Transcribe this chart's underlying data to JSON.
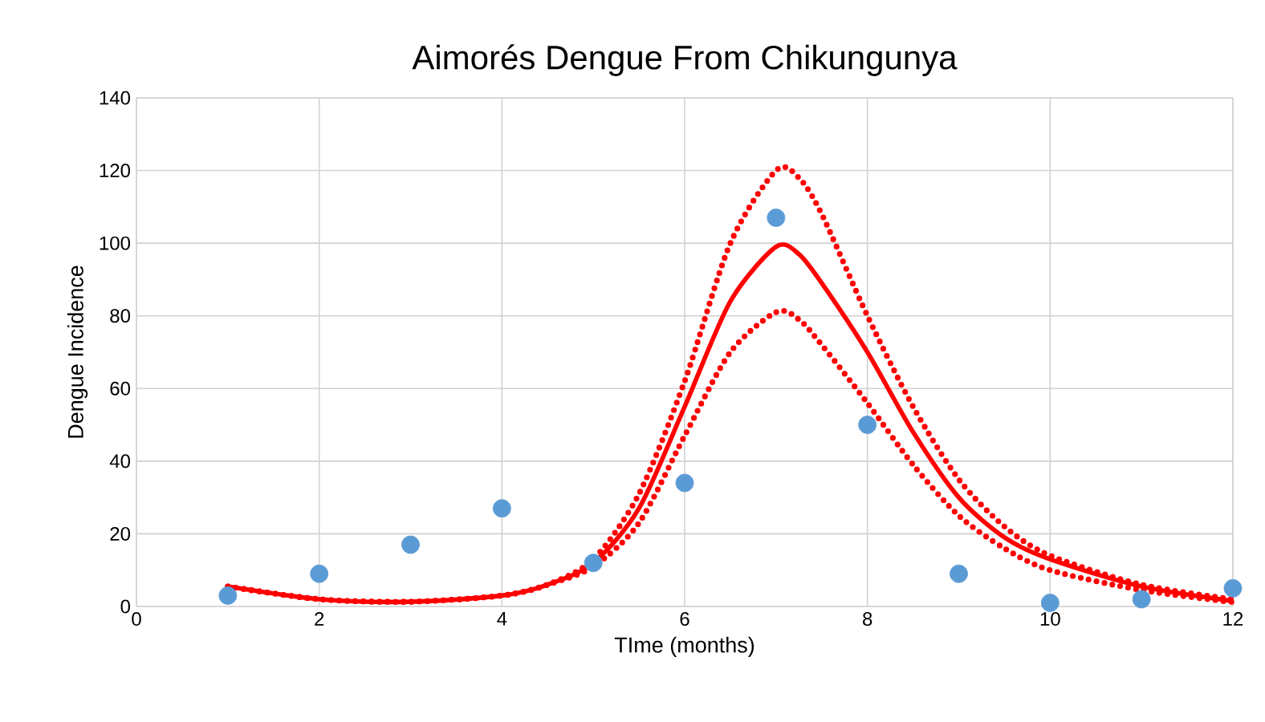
{
  "chart_data": {
    "type": "scatter",
    "title": "Aimorés Dengue From Chikungunya",
    "xlabel": "TIme (months)",
    "ylabel": "Dengue Incidence",
    "xlim": [
      0,
      12
    ],
    "xticks": [
      0,
      2,
      4,
      6,
      8,
      10,
      12
    ],
    "ylim": [
      0,
      140
    ],
    "yticks": [
      0,
      20,
      40,
      60,
      80,
      100,
      120,
      140
    ],
    "grid": true,
    "series": [
      {
        "color": "#5b9bd5",
        "marker": "circle",
        "x": [
          1,
          2,
          3,
          4,
          5,
          6,
          7,
          8,
          9,
          10,
          11,
          12
        ],
        "values": [
          3,
          9,
          17,
          27,
          12,
          34,
          107,
          50,
          9,
          1,
          2,
          5
        ]
      },
      {
        "type": "line",
        "color": "#ff0000",
        "line_style": "solid",
        "x": [
          1,
          2,
          3,
          4,
          4.5,
          5,
          5.5,
          6,
          6.5,
          7,
          7.25,
          7.5,
          8,
          8.5,
          9,
          9.5,
          10,
          11,
          12
        ],
        "values": [
          5.5,
          2,
          1.3,
          3,
          6,
          12,
          27,
          55,
          84,
          99,
          97,
          89,
          70,
          48,
          30,
          19,
          13,
          5.5,
          1.5
        ]
      },
      {
        "type": "line",
        "color": "#ff0000",
        "line_style": "dotted",
        "x": [
          1,
          2,
          3,
          4,
          4.5,
          5,
          5.5,
          6,
          6.5,
          7,
          7.25,
          7.5,
          8,
          8.5,
          9,
          9.5,
          10,
          11,
          12
        ],
        "values": [
          5.5,
          2,
          1.3,
          3,
          6,
          13,
          31,
          62,
          100,
          120,
          118,
          108,
          80,
          55,
          35,
          22,
          14,
          6,
          2
        ]
      },
      {
        "type": "line",
        "color": "#ff0000",
        "line_style": "dotted",
        "x": [
          1,
          2,
          3,
          4,
          4.5,
          5,
          5.5,
          6,
          6.5,
          7,
          7.25,
          7.5,
          8,
          8.5,
          9,
          9.5,
          10,
          11,
          12
        ],
        "values": [
          5.5,
          2,
          1.3,
          3,
          6,
          11,
          23,
          47,
          70,
          81,
          79,
          72,
          56,
          39,
          25,
          16,
          10,
          4.5,
          1.2
        ]
      }
    ]
  }
}
